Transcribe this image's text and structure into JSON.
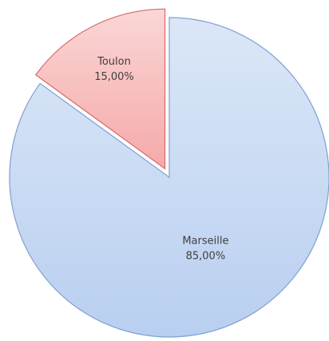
{
  "chart_data": {
    "type": "pie",
    "categories": [
      "Marseille",
      "Toulon"
    ],
    "values": [
      85,
      15
    ],
    "value_labels": [
      "85,00%",
      "15,00%"
    ],
    "colors": [
      "#c6d9f1",
      "#f9c3c3"
    ]
  }
}
